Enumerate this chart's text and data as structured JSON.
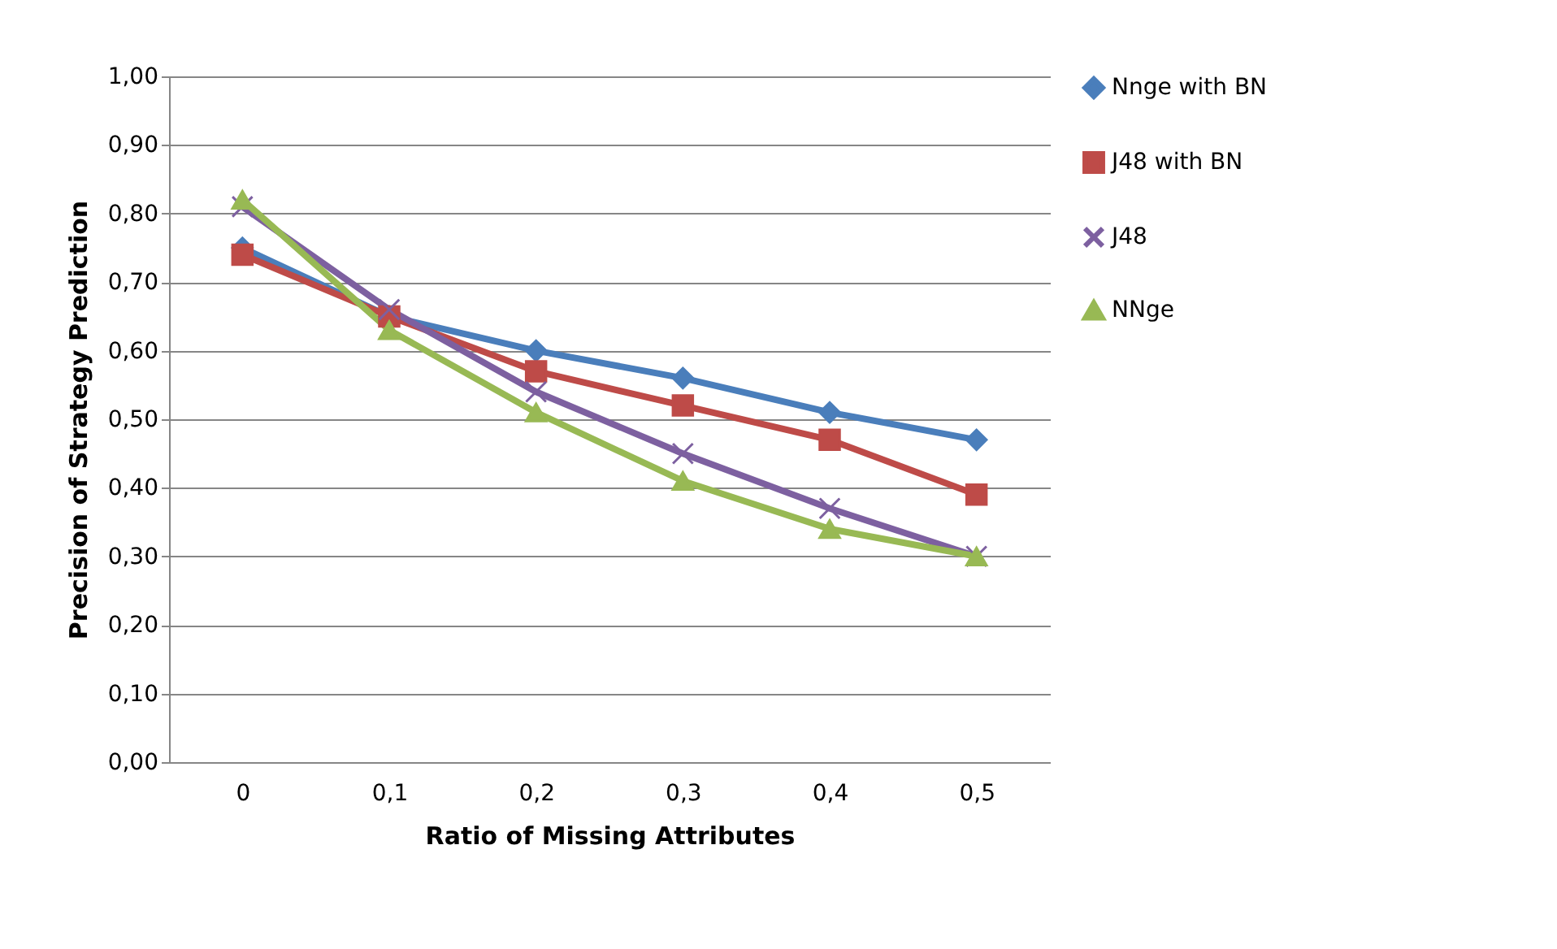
{
  "chart_data": {
    "type": "line",
    "xlabel": "Ratio of Missing Attributes",
    "ylabel": "Precision of Strategy Prediction",
    "categories": [
      "0",
      "0,1",
      "0,2",
      "0,3",
      "0,4",
      "0,5"
    ],
    "series": [
      {
        "name": "Nnge with BN",
        "color": "#4a7ebb",
        "marker": "diamond",
        "values": [
          0.75,
          0.65,
          0.6,
          0.56,
          0.51,
          0.47
        ]
      },
      {
        "name": "J48 with BN",
        "color": "#be4b48",
        "marker": "square",
        "values": [
          0.74,
          0.65,
          0.57,
          0.52,
          0.47,
          0.39
        ]
      },
      {
        "name": "J48",
        "color": "#7d60a0",
        "marker": "cross",
        "values": [
          0.81,
          0.66,
          0.54,
          0.45,
          0.37,
          0.3
        ]
      },
      {
        "name": "NNge",
        "color": "#98b954",
        "marker": "triangle",
        "values": [
          0.82,
          0.63,
          0.51,
          0.41,
          0.34,
          0.3
        ]
      }
    ],
    "ylim": [
      0,
      1
    ],
    "yticks": [
      {
        "value": 0,
        "label": "0,00"
      },
      {
        "value": 0.1,
        "label": "0,10"
      },
      {
        "value": 0.2,
        "label": "0,20"
      },
      {
        "value": 0.3,
        "label": "0,30"
      },
      {
        "value": 0.4,
        "label": "0,40"
      },
      {
        "value": 0.5,
        "label": "0,50"
      },
      {
        "value": 0.6,
        "label": "0,60"
      },
      {
        "value": 0.7,
        "label": "0,70"
      },
      {
        "value": 0.8,
        "label": "0,80"
      },
      {
        "value": 0.9,
        "label": "0,90"
      },
      {
        "value": 1,
        "label": "1,00"
      }
    ],
    "grid": "y",
    "legend": "right",
    "line_style": "solid"
  }
}
